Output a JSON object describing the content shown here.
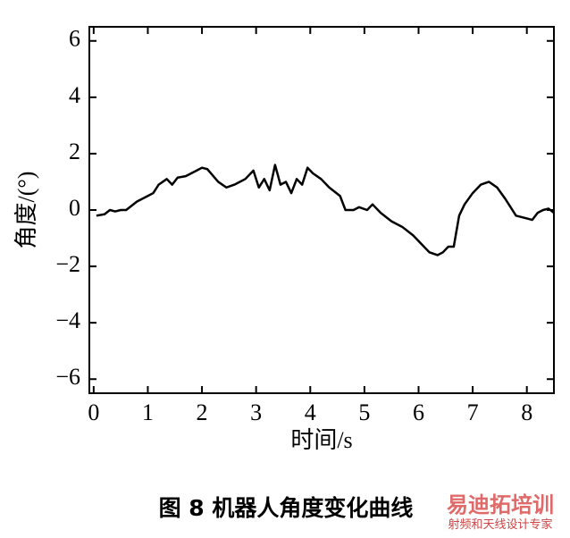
{
  "chart_data": {
    "type": "line",
    "caption": "图 8   机器人角度变化曲线",
    "x_label": "时间/s",
    "y_label": "角度/(°)",
    "watermark_logo": "易迪拓培训",
    "watermark_text": "射频和天线设计专家",
    "xlim": [
      -0.08,
      8.5
    ],
    "ylim": [
      -6.5,
      6.5
    ],
    "xticks": [
      0,
      1,
      2,
      3,
      4,
      5,
      6,
      7,
      8
    ],
    "yticks": [
      {
        "value": -6,
        "label": "−6"
      },
      {
        "value": -4,
        "label": "−4"
      },
      {
        "value": -2,
        "label": "−2"
      },
      0,
      2,
      4,
      6
    ],
    "series": [
      {
        "color": "#000000",
        "x": [
          0.05,
          0.2,
          0.3,
          0.4,
          0.5,
          0.6,
          0.8,
          1.0,
          1.1,
          1.2,
          1.35,
          1.45,
          1.55,
          1.7,
          1.9,
          2.0,
          2.1,
          2.3,
          2.45,
          2.6,
          2.8,
          2.95,
          3.05,
          3.15,
          3.25,
          3.35,
          3.45,
          3.55,
          3.65,
          3.75,
          3.85,
          3.95,
          4.05,
          4.2,
          4.35,
          4.55,
          4.65,
          4.8,
          4.9,
          5.05,
          5.15,
          5.3,
          5.5,
          5.7,
          5.9,
          6.05,
          6.2,
          6.35,
          6.45,
          6.55,
          6.65,
          6.75,
          6.85,
          7.0,
          7.15,
          7.3,
          7.45,
          7.6,
          7.8,
          8.0,
          8.1,
          8.2,
          8.3,
          8.4,
          8.5
        ],
        "values": [
          -0.2,
          -0.15,
          0,
          -0.05,
          0,
          0,
          0.3,
          0.5,
          0.6,
          0.9,
          1.1,
          0.9,
          1.15,
          1.2,
          1.4,
          1.5,
          1.45,
          1.0,
          0.8,
          0.9,
          1.1,
          1.4,
          0.8,
          1.1,
          0.7,
          1.6,
          0.9,
          1.0,
          0.6,
          1.1,
          0.9,
          1.5,
          1.3,
          1.1,
          0.8,
          0.5,
          0.0,
          0.0,
          0.1,
          0.0,
          0.2,
          -0.1,
          -0.4,
          -0.6,
          -0.9,
          -1.2,
          -1.5,
          -1.6,
          -1.5,
          -1.3,
          -1.3,
          -0.2,
          0.2,
          0.6,
          0.9,
          1.0,
          0.8,
          0.4,
          -0.2,
          -0.3,
          -0.35,
          -0.1,
          0.0,
          0.05,
          -0.1
        ]
      }
    ]
  }
}
